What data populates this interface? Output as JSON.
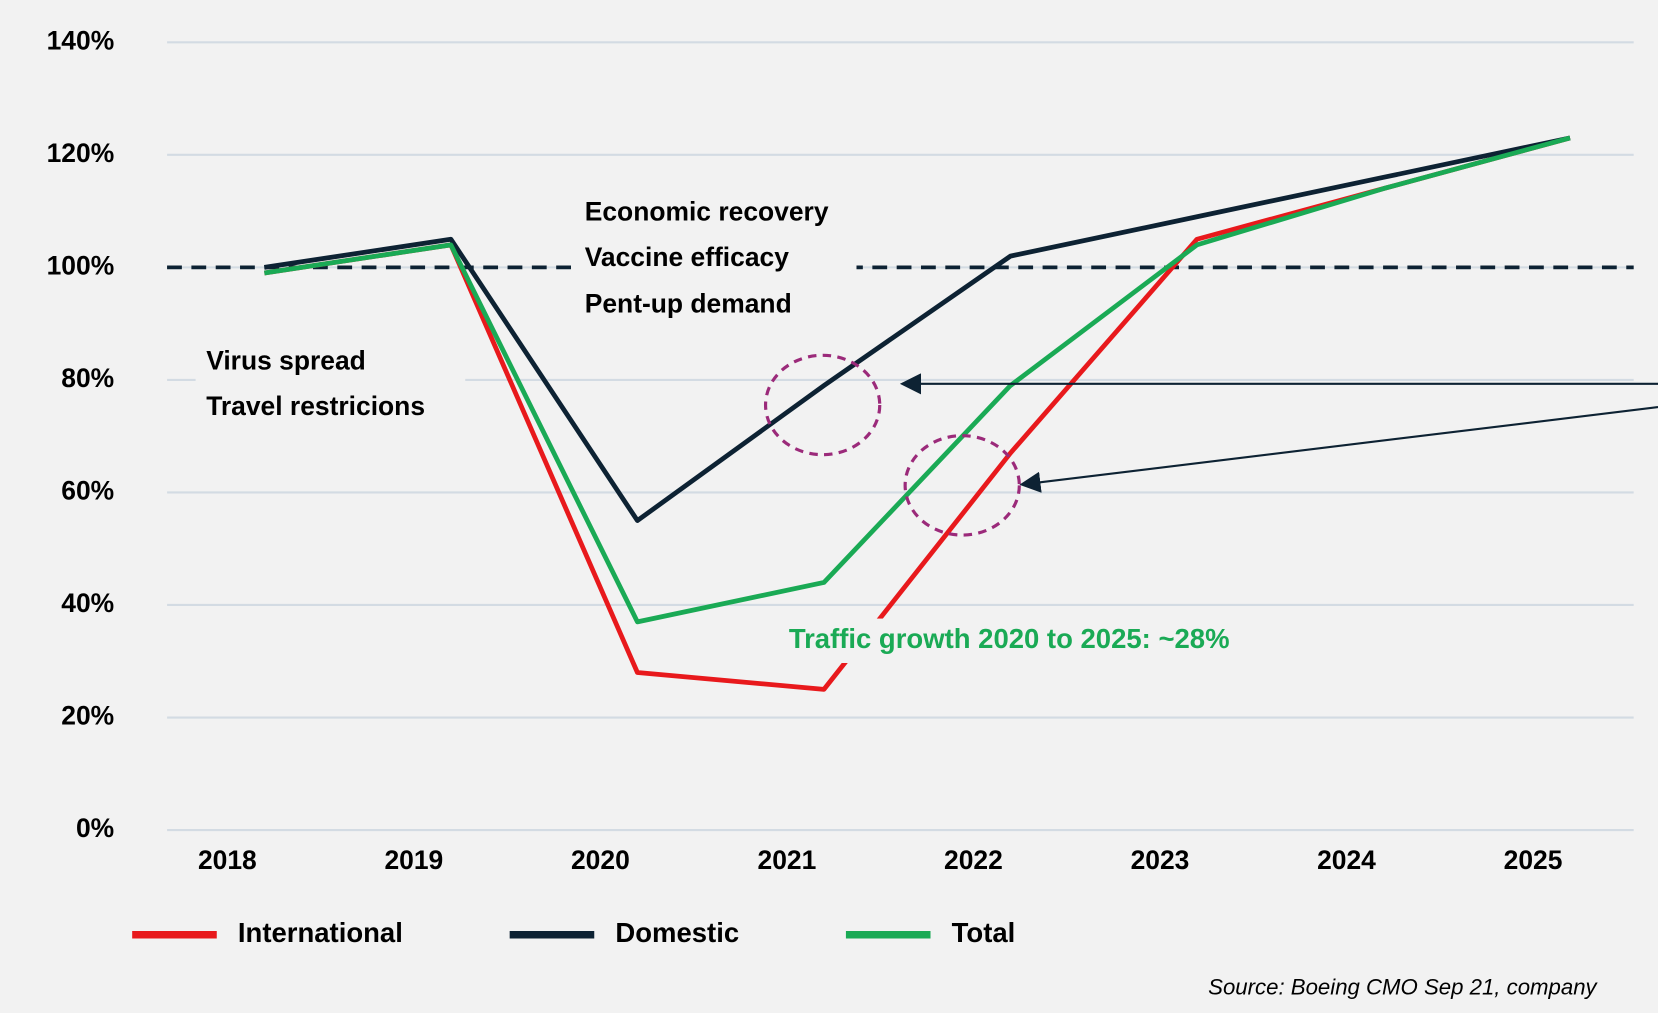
{
  "chart_data": {
    "type": "line",
    "categories": [
      "2018",
      "2019",
      "2020",
      "2021",
      "2022",
      "2023",
      "2024",
      "2025"
    ],
    "series": [
      {
        "name": "International",
        "color": "#e8191c",
        "values": [
          99,
          104,
          28,
          25,
          67,
          105,
          114,
          123
        ]
      },
      {
        "name": "Domestic",
        "color": "#0d2233",
        "values": [
          100,
          105,
          55,
          79,
          102,
          109,
          116,
          123
        ]
      },
      {
        "name": "Total",
        "color": "#1aaa55",
        "values": [
          99,
          104,
          37,
          44,
          79,
          104,
          114,
          123
        ]
      }
    ],
    "ylim": [
      0,
      140
    ],
    "yticks": [
      {
        "value": 0,
        "label": "0%"
      },
      {
        "value": 20,
        "label": "20%"
      },
      {
        "value": 40,
        "label": "40%"
      },
      {
        "value": 60,
        "label": "60%"
      },
      {
        "value": 80,
        "label": "80%"
      },
      {
        "value": 100,
        "label": "100%"
      },
      {
        "value": 120,
        "label": "120%"
      },
      {
        "value": 140,
        "label": "140%"
      }
    ],
    "grid": true,
    "reference_line": 100,
    "annotations": [
      "Virus spread",
      "Travel restricions",
      "Economic recovery",
      "Vaccine efficacy",
      "Pent-up demand"
    ],
    "highlight": "Traffic growth 2020 to 2025: ~28%",
    "source": "Source: Boeing CMO Sep 21, company",
    "legend": "bottom"
  }
}
